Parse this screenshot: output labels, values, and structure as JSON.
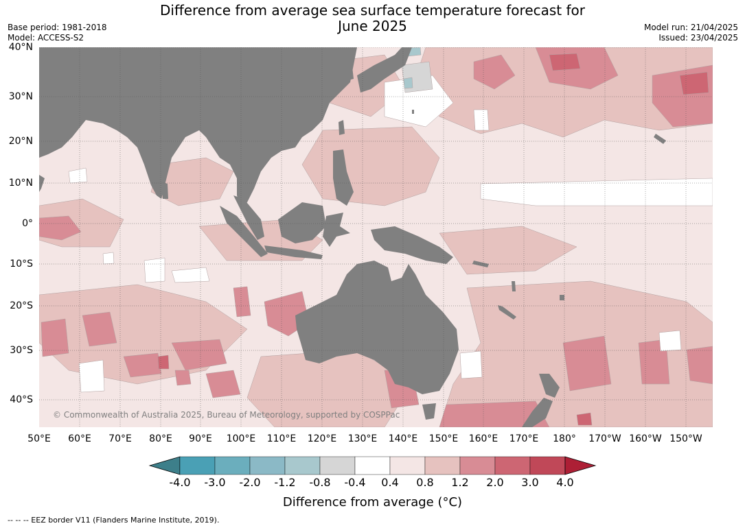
{
  "title_line1": "Difference from average sea surface temperature forecast for",
  "title_line2": "June 2025",
  "base_period": "Base period: 1981-2018",
  "model": "Model: ACCESS-S2",
  "model_run": "Model run: 21/04/2025",
  "issued": "Issued: 23/04/2025",
  "lat_labels": [
    "40°N",
    "30°N",
    "20°N",
    "10°N",
    "0°",
    "10°S",
    "20°S",
    "30°S",
    "40°S"
  ],
  "lon_labels": [
    "50°E",
    "60°E",
    "70°E",
    "80°E",
    "90°E",
    "100°E",
    "110°E",
    "120°E",
    "130°E",
    "140°E",
    "150°E",
    "160°E",
    "170°E",
    "180°",
    "170°W",
    "160°W",
    "150°W"
  ],
  "copyright": "© Commonwealth of Australia 2025, Bureau of Meteorology, supported by COSPPac",
  "colorbar": {
    "ticks": [
      "-4.0",
      "-3.0",
      "-2.0",
      "-1.2",
      "-0.8",
      "-0.4",
      "0.4",
      "0.8",
      "1.2",
      "2.0",
      "3.0",
      "4.0"
    ],
    "colors": [
      "#3d7f8a",
      "#4aa0b5",
      "#6baebd",
      "#8bb9c6",
      "#a8c8cd",
      "#d6d6d6",
      "#ffffff",
      "#f4e6e5",
      "#e6c2bf",
      "#d88c95",
      "#cd6673",
      "#c04858",
      "#ad1f35"
    ],
    "label": "Difference from average (°C)"
  },
  "footnote": "--  --  -- EEZ border V11 (Flanders Marine Institute, 2019).",
  "colors": {
    "land": "#808080",
    "ocean_base": "#f4e6e5",
    "grid": "#555555"
  }
}
